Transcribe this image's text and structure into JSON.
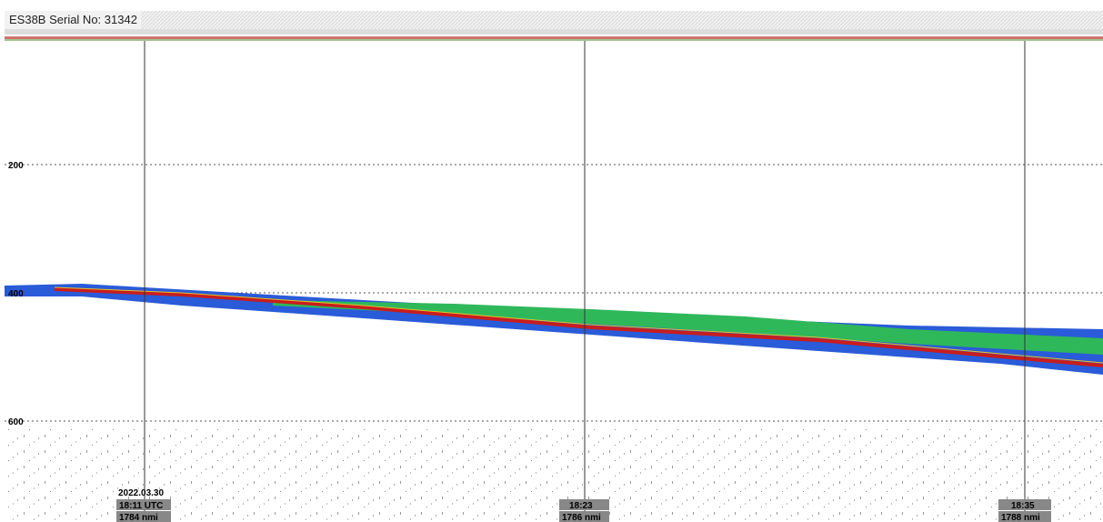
{
  "header": {
    "title": "ES38B Serial No: 31342"
  },
  "depth_labels": [
    "200",
    "400",
    "600"
  ],
  "markers": [
    {
      "date": "2022.03.30",
      "time": "18:11 UTC",
      "distance": "1784 nmi"
    },
    {
      "time": "18:23",
      "distance": "1786 nmi"
    },
    {
      "time": "18:35",
      "distance": "1788 nmi"
    }
  ]
}
